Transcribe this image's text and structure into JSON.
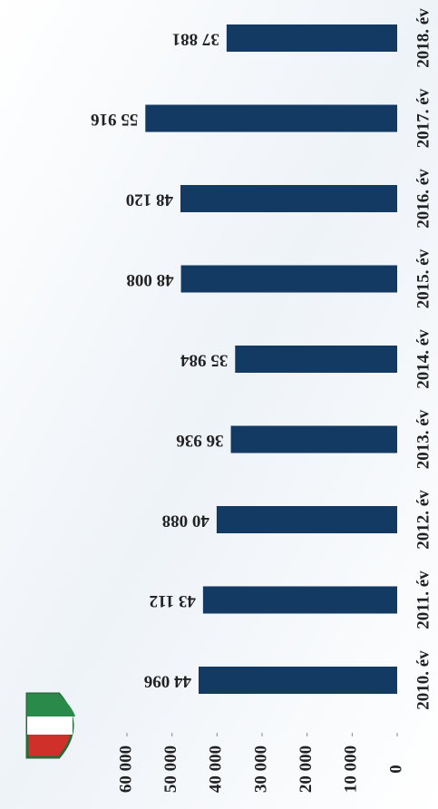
{
  "chart_data": {
    "type": "bar",
    "orientation": "horizontal",
    "categories": [
      "2010. év",
      "2011. év",
      "2012. év",
      "2013. év",
      "2014. év",
      "2015. év",
      "2016. év",
      "2017. év",
      "2018. év"
    ],
    "values": [
      44096,
      43112,
      40088,
      36936,
      35984,
      48008,
      48120,
      55916,
      37881
    ],
    "value_labels": [
      "44 096",
      "43 112",
      "40 088",
      "36 936",
      "35 984",
      "48 008",
      "48 120",
      "55 916",
      "37 881"
    ],
    "color": "#123a63",
    "ylim": [
      0,
      60000
    ],
    "yticks": [
      {
        "value": 0,
        "label": "0"
      },
      {
        "value": 10000,
        "label": "10 000"
      },
      {
        "value": 20000,
        "label": "20 000"
      },
      {
        "value": 30000,
        "label": "30 000"
      },
      {
        "value": 40000,
        "label": "40 000"
      },
      {
        "value": 50000,
        "label": "50 000"
      },
      {
        "value": 60000,
        "label": "60 000"
      }
    ]
  }
}
